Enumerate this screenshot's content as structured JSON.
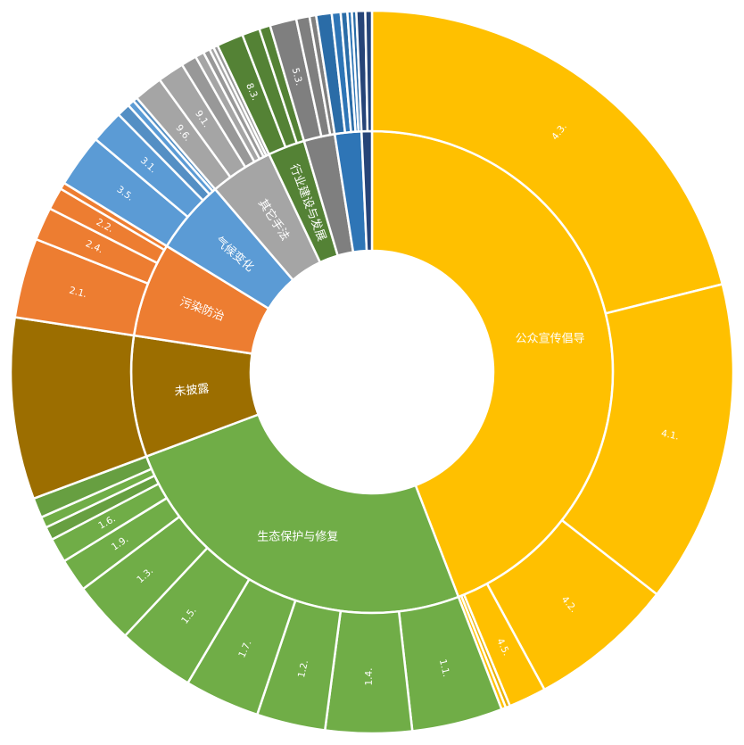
{
  "chart_data": {
    "type": "sunburst",
    "title": "",
    "root_value": 100,
    "categories": [
      {
        "name": "公众宣传倡导",
        "color": "#FFC000",
        "children": [
          {
            "name": "4.3.",
            "value": 21.3,
            "label": true
          },
          {
            "name": "4.1.",
            "value": 14.6,
            "label": true
          },
          {
            "name": "4.2.",
            "value": 6.6,
            "label": true
          },
          {
            "name": "4.5.",
            "value": 1.7,
            "label": true
          },
          {
            "name": "",
            "value": 0.2,
            "label": false
          },
          {
            "name": "",
            "value": 0.2,
            "label": false
          }
        ]
      },
      {
        "name": "生态保护与修复",
        "color": "#70AD47",
        "children": [
          {
            "name": "1.1.",
            "value": 4.1,
            "label": true
          },
          {
            "name": "1.4.",
            "value": 3.9,
            "label": true
          },
          {
            "name": "1.2.",
            "value": 3.1,
            "label": true
          },
          {
            "name": "1.7.",
            "value": 3.4,
            "label": true
          },
          {
            "name": "1.5.",
            "value": 3.5,
            "label": true
          },
          {
            "name": "1.3.",
            "value": 2.8,
            "label": true
          },
          {
            "name": "1.9.",
            "value": 1.5,
            "label": true
          },
          {
            "name": "1.6.",
            "value": 1.1,
            "label": true
          },
          {
            "name": "",
            "value": 0.6,
            "label": false
          },
          {
            "name": "",
            "value": 0.5,
            "label": false
          },
          {
            "name": "",
            "value": 0.9,
            "label": false
          }
        ]
      },
      {
        "name": "未披露",
        "color": "#9C6E00",
        "children": [
          {
            "name": "",
            "value": 8.2,
            "label": false
          }
        ]
      },
      {
        "name": "污染防治",
        "color": "#ED7D31",
        "children": [
          {
            "name": "2.1.",
            "value": 3.6,
            "label": true
          },
          {
            "name": "2.4.",
            "value": 1.5,
            "label": true
          },
          {
            "name": "2.2.",
            "value": 1.0,
            "label": true
          },
          {
            "name": "",
            "value": 0.3,
            "label": false
          }
        ]
      },
      {
        "name": "气候变化",
        "color": "#5B9BD5",
        "children": [
          {
            "name": "3.5.",
            "value": 2.4,
            "label": true
          },
          {
            "name": "3.1.",
            "value": 1.5,
            "label": true
          },
          {
            "name": "",
            "value": 0.6,
            "label": false
          },
          {
            "name": "",
            "value": 0.3,
            "label": false
          },
          {
            "name": "",
            "value": 0.2,
            "label": false
          }
        ]
      },
      {
        "name": "其它手法",
        "color": "#A5A5A5",
        "children": [
          {
            "name": "9.6.",
            "value": 1.3,
            "label": true
          },
          {
            "name": "9.1.",
            "value": 1.2,
            "label": true
          },
          {
            "name": "",
            "value": 0.7,
            "label": false
          },
          {
            "name": "",
            "value": 0.4,
            "label": false
          },
          {
            "name": "",
            "value": 0.3,
            "label": false
          },
          {
            "name": "",
            "value": 0.2,
            "label": false
          },
          {
            "name": "",
            "value": 0.2,
            "label": false
          }
        ]
      },
      {
        "name": "行业建设与发展",
        "color": "#548235",
        "children": [
          {
            "name": "8.3.",
            "value": 1.2,
            "label": true
          },
          {
            "name": "",
            "value": 0.8,
            "label": false
          },
          {
            "name": "",
            "value": 0.5,
            "label": false
          }
        ]
      },
      {
        "name": "",
        "color": "#7F7F7F",
        "children": [
          {
            "name": "5.3.",
            "value": 1.2,
            "label": true
          },
          {
            "name": "",
            "value": 0.6,
            "label": false
          },
          {
            "name": "",
            "value": 0.3,
            "label": false
          }
        ]
      },
      {
        "name": "",
        "color": "#2E75B6",
        "children": [
          {
            "name": "",
            "value": 0.7,
            "label": false
          },
          {
            "name": "",
            "value": 0.4,
            "label": false
          },
          {
            "name": "",
            "value": 0.3,
            "label": false
          },
          {
            "name": "",
            "value": 0.2,
            "label": false
          },
          {
            "name": "",
            "value": 0.2,
            "label": false
          }
        ]
      },
      {
        "name": "",
        "color": "#264478",
        "children": [
          {
            "name": "",
            "value": 0.4,
            "label": false
          },
          {
            "name": "",
            "value": 0.3,
            "label": false
          }
        ]
      }
    ]
  }
}
